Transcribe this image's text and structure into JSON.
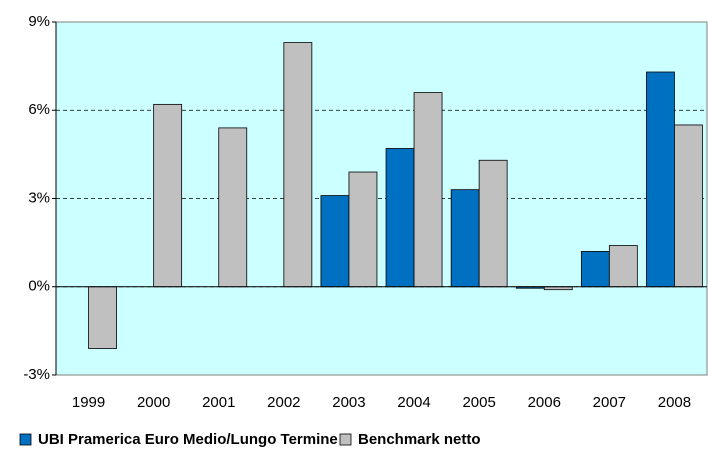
{
  "chart_data": {
    "type": "bar",
    "categories": [
      "1999",
      "2000",
      "2001",
      "2002",
      "2003",
      "2004",
      "2005",
      "2006",
      "2007",
      "2008"
    ],
    "series": [
      {
        "name": "UBI Pramerica Euro Medio/Lungo Termine",
        "color": "#0070c0",
        "values": [
          null,
          null,
          null,
          null,
          3.1,
          4.7,
          3.3,
          -0.05,
          1.2,
          7.3
        ]
      },
      {
        "name": "Benchmark netto",
        "color": "#c0c0c0",
        "values": [
          -2.1,
          6.2,
          5.4,
          8.3,
          3.9,
          6.6,
          4.3,
          -0.1,
          1.4,
          5.5
        ]
      }
    ],
    "ylim": [
      -3,
      9
    ],
    "yticks": [
      {
        "value": -3,
        "label": "-3%"
      },
      {
        "value": 0,
        "label": "0%"
      },
      {
        "value": 3,
        "label": "3%"
      },
      {
        "value": 6,
        "label": "6%"
      },
      {
        "value": 9,
        "label": "9%"
      }
    ],
    "grid": true,
    "legend": "bottom"
  }
}
